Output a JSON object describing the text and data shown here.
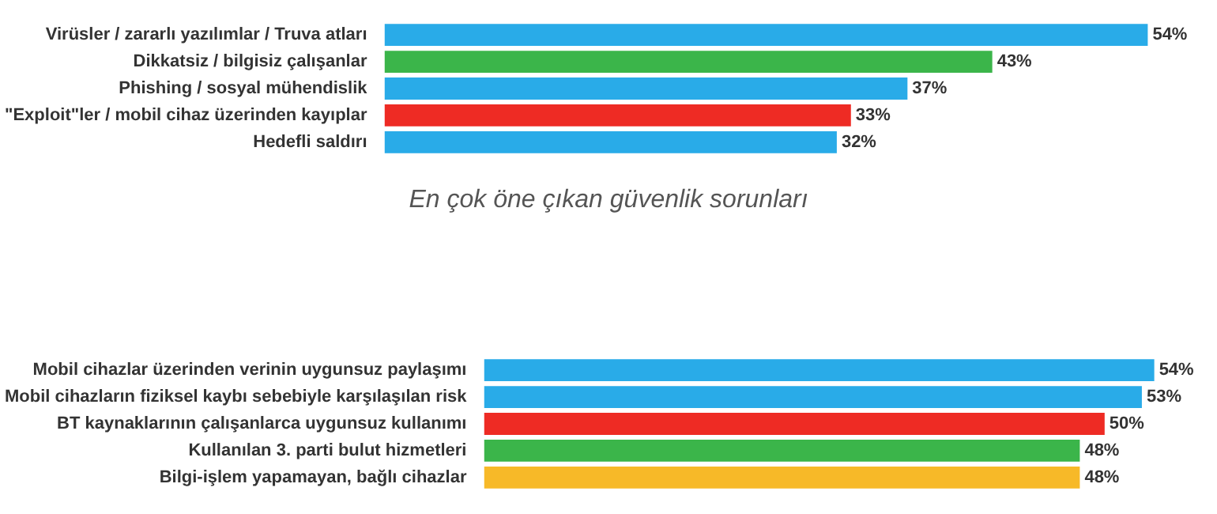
{
  "chart_data": [
    {
      "type": "bar",
      "orientation": "horizontal",
      "subtitle": "En çok öne çıkan güvenlik sorunları",
      "categories": [
        "Virüsler / zararlı yazılımlar / Truva atları",
        "Dikkatsiz / bilgisiz çalışanlar",
        "Phishing / sosyal mühendislik",
        "\"Exploit\"ler / mobil cihaz üzerinden kayıplar",
        "Hedefli saldırı"
      ],
      "values": [
        54,
        43,
        37,
        33,
        32
      ],
      "value_labels": [
        "54%",
        "43%",
        "37%",
        "33%",
        "32%"
      ],
      "colors": [
        "#29abe8",
        "#3bb54a",
        "#29abe8",
        "#ee2b24",
        "#29abe8"
      ],
      "legend": false
    },
    {
      "type": "bar",
      "orientation": "horizontal",
      "categories": [
        "Mobil cihazlar üzerinden verinin uygunsuz paylaşımı",
        "Mobil cihazların fiziksel kaybı sebebiyle karşılaşılan risk",
        "BT kaynaklarının çalışanlarca uygunsuz kullanımı",
        "Kullanılan 3. parti bulut hizmetleri",
        "Bilgi-işlem yapamayan, bağlı cihazlar"
      ],
      "values": [
        54,
        53,
        50,
        48,
        48
      ],
      "value_labels": [
        "54%",
        "53%",
        "50%",
        "48%",
        "48%"
      ],
      "colors": [
        "#29abe8",
        "#29abe8",
        "#ee2b24",
        "#3bb54a",
        "#f7b928"
      ],
      "legend": false
    }
  ]
}
